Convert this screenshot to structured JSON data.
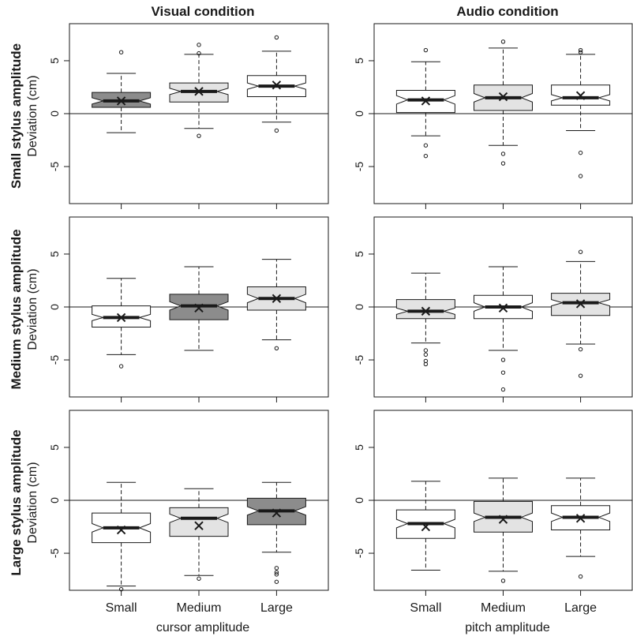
{
  "colors": {
    "dark": "#8c8c8c",
    "light": "#e3e3e3",
    "white": "#ffffff",
    "stroke": "#1a1a1a"
  },
  "columns": [
    {
      "title": "Visual condition",
      "xlabel": "cursor amplitude"
    },
    {
      "title": "Audio condition",
      "xlabel": "pitch amplitude"
    }
  ],
  "rows": [
    {
      "title": "Small stylus amplitude",
      "ylabel": "Deviation (cm)"
    },
    {
      "title": "Medium stylus amplitude",
      "ylabel": "Deviation (cm)"
    },
    {
      "title": "Large stylus amplitude",
      "ylabel": "Deviation (cm)"
    }
  ],
  "chart_data": {
    "type": "boxplot",
    "categories": [
      "Small",
      "Medium",
      "Large"
    ],
    "ylim": [
      -8.5,
      8.5
    ],
    "yticks": [
      -5,
      0,
      5
    ],
    "reference_line": 0,
    "notched": true,
    "mean_marker": "x",
    "panels": [
      {
        "row": 0,
        "col": 0,
        "boxes": [
          {
            "category": "Small",
            "fill": "dark",
            "q1": 0.6,
            "median": 1.2,
            "q3": 2.0,
            "notch_low": 0.9,
            "notch_high": 1.5,
            "whisker_low": -1.8,
            "whisker_high": 3.8,
            "mean": 1.2,
            "outliers": [
              5.8
            ]
          },
          {
            "category": "Medium",
            "fill": "light",
            "q1": 1.1,
            "median": 2.1,
            "q3": 2.9,
            "notch_low": 1.8,
            "notch_high": 2.4,
            "whisker_low": -1.4,
            "whisker_high": 5.6,
            "mean": 2.1,
            "outliers": [
              6.5,
              5.7,
              -2.1
            ]
          },
          {
            "category": "Large",
            "fill": "white",
            "q1": 1.6,
            "median": 2.6,
            "q3": 3.6,
            "notch_low": 2.3,
            "notch_high": 2.9,
            "whisker_low": -0.8,
            "whisker_high": 5.9,
            "mean": 2.7,
            "outliers": [
              7.2,
              -1.6
            ]
          }
        ]
      },
      {
        "row": 0,
        "col": 1,
        "boxes": [
          {
            "category": "Small",
            "fill": "white",
            "q1": 0.1,
            "median": 1.3,
            "q3": 2.2,
            "notch_low": 0.9,
            "notch_high": 1.7,
            "whisker_low": -2.1,
            "whisker_high": 4.9,
            "mean": 1.2,
            "outliers": [
              6.0,
              -3.0,
              -4.0
            ]
          },
          {
            "category": "Medium",
            "fill": "light",
            "q1": 0.3,
            "median": 1.5,
            "q3": 2.7,
            "notch_low": 1.1,
            "notch_high": 1.9,
            "whisker_low": -3.0,
            "whisker_high": 6.2,
            "mean": 1.6,
            "outliers": [
              6.8,
              -3.8,
              -4.7
            ]
          },
          {
            "category": "Large",
            "fill": "white",
            "q1": 0.8,
            "median": 1.5,
            "q3": 2.7,
            "notch_low": 1.2,
            "notch_high": 1.8,
            "whisker_low": -1.6,
            "whisker_high": 5.6,
            "mean": 1.7,
            "outliers": [
              6.0,
              5.8,
              -3.7,
              -5.9
            ]
          }
        ]
      },
      {
        "row": 1,
        "col": 0,
        "boxes": [
          {
            "category": "Small",
            "fill": "white",
            "q1": -1.9,
            "median": -1.0,
            "q3": 0.1,
            "notch_low": -1.3,
            "notch_high": -0.7,
            "whisker_low": -4.5,
            "whisker_high": 2.7,
            "mean": -1.0,
            "outliers": [
              -5.6
            ]
          },
          {
            "category": "Medium",
            "fill": "dark",
            "q1": -1.2,
            "median": 0.1,
            "q3": 1.2,
            "notch_low": -0.3,
            "notch_high": 0.5,
            "whisker_low": -4.1,
            "whisker_high": 3.8,
            "mean": -0.1,
            "outliers": []
          },
          {
            "category": "Large",
            "fill": "light",
            "q1": -0.3,
            "median": 0.8,
            "q3": 1.9,
            "notch_low": 0.4,
            "notch_high": 1.2,
            "whisker_low": -3.1,
            "whisker_high": 4.5,
            "mean": 0.8,
            "outliers": [
              -3.9
            ]
          }
        ]
      },
      {
        "row": 1,
        "col": 1,
        "boxes": [
          {
            "category": "Small",
            "fill": "light",
            "q1": -1.1,
            "median": -0.4,
            "q3": 0.7,
            "notch_low": -0.7,
            "notch_high": -0.1,
            "whisker_low": -3.4,
            "whisker_high": 3.2,
            "mean": -0.4,
            "outliers": [
              -4.1,
              -4.5,
              -5.1,
              -5.4
            ]
          },
          {
            "category": "Medium",
            "fill": "white",
            "q1": -1.1,
            "median": 0.0,
            "q3": 1.1,
            "notch_low": -0.4,
            "notch_high": 0.4,
            "whisker_low": -4.1,
            "whisker_high": 3.8,
            "mean": -0.1,
            "outliers": [
              -5.0,
              -6.2,
              -7.8
            ]
          },
          {
            "category": "Large",
            "fill": "light",
            "q1": -0.8,
            "median": 0.4,
            "q3": 1.3,
            "notch_low": 0.1,
            "notch_high": 0.7,
            "whisker_low": -3.5,
            "whisker_high": 4.3,
            "mean": 0.3,
            "outliers": [
              5.2,
              -4.0,
              -6.5
            ]
          }
        ]
      },
      {
        "row": 2,
        "col": 0,
        "boxes": [
          {
            "category": "Small",
            "fill": "white",
            "q1": -4.0,
            "median": -2.6,
            "q3": -1.2,
            "notch_low": -3.0,
            "notch_high": -2.2,
            "whisker_low": -8.1,
            "whisker_high": 1.7,
            "mean": -2.8,
            "outliers": [
              -8.4
            ]
          },
          {
            "category": "Medium",
            "fill": "light",
            "q1": -3.4,
            "median": -1.7,
            "q3": -0.7,
            "notch_low": -2.1,
            "notch_high": -1.3,
            "whisker_low": -7.1,
            "whisker_high": 1.1,
            "mean": -2.4,
            "outliers": [
              -7.4
            ]
          },
          {
            "category": "Large",
            "fill": "dark",
            "q1": -2.3,
            "median": -1.0,
            "q3": 0.2,
            "notch_low": -1.4,
            "notch_high": -0.6,
            "whisker_low": -4.9,
            "whisker_high": 1.7,
            "mean": -1.2,
            "outliers": [
              -6.4,
              -6.8,
              -7.0,
              -7.7
            ]
          }
        ]
      },
      {
        "row": 2,
        "col": 1,
        "boxes": [
          {
            "category": "Small",
            "fill": "white",
            "q1": -3.6,
            "median": -2.2,
            "q3": -0.9,
            "notch_low": -2.6,
            "notch_high": -1.8,
            "whisker_low": -6.6,
            "whisker_high": 1.8,
            "mean": -2.5,
            "outliers": []
          },
          {
            "category": "Medium",
            "fill": "light",
            "q1": -3.0,
            "median": -1.6,
            "q3": -0.1,
            "notch_low": -2.0,
            "notch_high": -1.2,
            "whisker_low": -6.7,
            "whisker_high": 2.1,
            "mean": -1.8,
            "outliers": [
              -7.6
            ]
          },
          {
            "category": "Large",
            "fill": "white",
            "q1": -2.8,
            "median": -1.6,
            "q3": -0.5,
            "notch_low": -2.0,
            "notch_high": -1.2,
            "whisker_low": -5.3,
            "whisker_high": 2.1,
            "mean": -1.7,
            "outliers": [
              -7.2
            ]
          }
        ]
      }
    ]
  }
}
